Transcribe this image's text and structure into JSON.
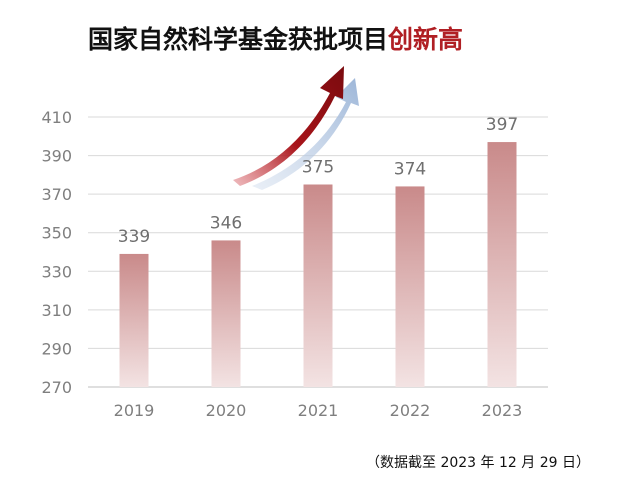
{
  "title": {
    "main": "国家自然科学基金获批项目",
    "highlight": "创新高",
    "highlight_color": "#b01f24"
  },
  "footnote": "（数据截至 2023 年 12 月 29 日）",
  "chart_data": {
    "type": "bar",
    "categories": [
      "2019",
      "2020",
      "2021",
      "2022",
      "2023"
    ],
    "values": [
      339,
      346,
      375,
      374,
      397
    ],
    "ylim": [
      270,
      410
    ],
    "yticks": [
      270,
      290,
      310,
      330,
      350,
      370,
      390,
      410
    ],
    "grid": true,
    "bar_color_top": "#c98a8a",
    "bar_color_bottom": "#f3e3e3",
    "arrow_colors": [
      "#8b0e12",
      "#a8bfdc"
    ]
  }
}
